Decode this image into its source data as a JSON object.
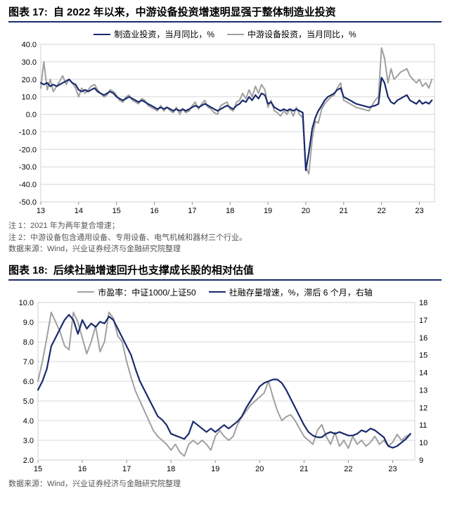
{
  "chart17": {
    "prefix": "图表 17:",
    "title": "自 2022 年以来，中游设备投资增速明显强于整体制造业投资",
    "type": "line",
    "legend": [
      {
        "label": "制造业投资，当月同比，%",
        "color": "#1a2a6c"
      },
      {
        "label": "中游设备投资，当月同比，%",
        "color": "#a0a0a0"
      }
    ],
    "x_labels": [
      "13",
      "14",
      "15",
      "16",
      "17",
      "18",
      "19",
      "20",
      "21",
      "22",
      "23"
    ],
    "x_values": [
      13,
      14,
      15,
      16,
      17,
      18,
      19,
      20,
      21,
      22,
      23
    ],
    "y_ticks": [
      -50,
      -40,
      -30,
      -20,
      -10,
      0,
      10,
      20,
      30,
      40
    ],
    "ylim": [
      -50,
      40
    ],
    "grid_color": "#d8d8d8",
    "background_color": "#ffffff",
    "line_width": 2.0,
    "title_fontsize": 15,
    "tick_fontsize": 11,
    "series": {
      "mfg": {
        "color": "#1a2a6c",
        "width": 2.2,
        "x": [
          13.0,
          13.08,
          13.17,
          13.25,
          13.33,
          13.42,
          13.5,
          13.58,
          13.67,
          13.75,
          13.83,
          13.92,
          14.0,
          14.08,
          14.17,
          14.25,
          14.33,
          14.42,
          14.5,
          14.58,
          14.67,
          14.75,
          14.83,
          14.92,
          15.0,
          15.08,
          15.17,
          15.25,
          15.33,
          15.42,
          15.5,
          15.58,
          15.67,
          15.75,
          15.83,
          15.92,
          16.0,
          16.08,
          16.17,
          16.25,
          16.33,
          16.42,
          16.5,
          16.58,
          16.67,
          16.75,
          16.83,
          16.92,
          17.0,
          17.08,
          17.17,
          17.25,
          17.33,
          17.42,
          17.5,
          17.58,
          17.67,
          17.75,
          17.83,
          17.92,
          18.0,
          18.08,
          18.17,
          18.25,
          18.33,
          18.42,
          18.5,
          18.58,
          18.67,
          18.75,
          18.83,
          18.92,
          19.0,
          19.08,
          19.17,
          19.25,
          19.33,
          19.42,
          19.5,
          19.58,
          19.67,
          19.75,
          19.83,
          19.92,
          20.0,
          20.08,
          20.17,
          20.25,
          20.33,
          20.42,
          20.5,
          20.58,
          20.67,
          20.75,
          20.83,
          20.92,
          21.0,
          21.17,
          21.33,
          21.5,
          21.67,
          21.83,
          21.92,
          22.0,
          22.08,
          22.17,
          22.25,
          22.33,
          22.42,
          22.5,
          22.58,
          22.67,
          22.75,
          22.83,
          22.92,
          23.0,
          23.08,
          23.17,
          23.25,
          23.33
        ],
        "y": [
          18,
          17,
          18,
          16,
          17,
          16,
          17,
          18,
          19,
          20,
          18,
          17,
          14,
          13,
          14,
          13,
          14,
          15,
          13,
          12,
          11,
          12,
          13,
          12,
          10,
          9,
          8,
          9,
          10,
          9,
          8,
          7,
          8,
          7,
          6,
          5,
          4,
          3,
          4,
          3,
          4,
          3,
          2,
          3,
          2,
          3,
          2,
          3,
          4,
          5,
          4,
          5,
          6,
          5,
          4,
          3,
          2,
          3,
          4,
          5,
          4,
          3,
          5,
          6,
          8,
          7,
          10,
          8,
          11,
          9,
          12,
          11,
          6,
          7,
          4,
          3,
          2,
          3,
          2,
          3,
          2,
          3,
          2,
          1,
          -32,
          -22,
          -8,
          -2,
          2,
          5,
          8,
          10,
          11,
          12,
          14,
          15,
          10,
          8,
          6,
          5,
          4,
          5,
          6,
          21,
          18,
          10,
          7,
          6,
          8,
          9,
          10,
          11,
          8,
          7,
          6,
          8,
          6,
          7,
          6,
          8
        ]
      },
      "midstream": {
        "color": "#a0a0a0",
        "width": 2.0,
        "x": [
          13.0,
          13.08,
          13.17,
          13.25,
          13.33,
          13.42,
          13.5,
          13.58,
          13.67,
          13.75,
          13.83,
          13.92,
          14.0,
          14.08,
          14.17,
          14.25,
          14.33,
          14.42,
          14.5,
          14.58,
          14.67,
          14.75,
          14.83,
          14.92,
          15.0,
          15.08,
          15.17,
          15.25,
          15.33,
          15.42,
          15.5,
          15.58,
          15.67,
          15.75,
          15.83,
          15.92,
          16.0,
          16.08,
          16.17,
          16.25,
          16.33,
          16.42,
          16.5,
          16.58,
          16.67,
          16.75,
          16.83,
          16.92,
          17.0,
          17.08,
          17.17,
          17.25,
          17.33,
          17.42,
          17.5,
          17.58,
          17.67,
          17.75,
          17.83,
          17.92,
          18.0,
          18.08,
          18.17,
          18.25,
          18.33,
          18.42,
          18.5,
          18.58,
          18.67,
          18.75,
          18.83,
          18.92,
          19.0,
          19.08,
          19.17,
          19.25,
          19.33,
          19.42,
          19.5,
          19.58,
          19.67,
          19.75,
          19.83,
          19.92,
          20.0,
          20.08,
          20.17,
          20.25,
          20.33,
          20.42,
          20.5,
          20.58,
          20.67,
          20.75,
          20.83,
          20.92,
          21.0,
          21.17,
          21.33,
          21.5,
          21.67,
          21.83,
          21.92,
          22.0,
          22.08,
          22.17,
          22.25,
          22.33,
          22.42,
          22.5,
          22.58,
          22.67,
          22.75,
          22.83,
          22.92,
          23.0,
          23.08,
          23.17,
          23.25,
          23.33
        ],
        "y": [
          15,
          30,
          14,
          20,
          13,
          16,
          19,
          22,
          17,
          20,
          18,
          15,
          10,
          15,
          12,
          14,
          16,
          17,
          14,
          12,
          10,
          11,
          14,
          13,
          11,
          8,
          7,
          10,
          11,
          8,
          7,
          6,
          9,
          8,
          5,
          4,
          3,
          2,
          5,
          2,
          4,
          2,
          1,
          4,
          0,
          3,
          1,
          2,
          5,
          7,
          3,
          6,
          8,
          4,
          3,
          1,
          0,
          5,
          6,
          7,
          3,
          2,
          7,
          8,
          12,
          9,
          14,
          10,
          16,
          12,
          17,
          14,
          4,
          8,
          2,
          1,
          -1,
          2,
          0,
          3,
          -1,
          4,
          0,
          -2,
          -30,
          -34,
          -14,
          -4,
          -5,
          3,
          6,
          8,
          10,
          11,
          15,
          18,
          8,
          6,
          4,
          3,
          2,
          8,
          10,
          38,
          32,
          18,
          26,
          20,
          22,
          24,
          25,
          26,
          22,
          20,
          18,
          20,
          16,
          18,
          15,
          20
        ]
      }
    },
    "notes": [
      "注 1：2021 年为两年复合增速；",
      "注 2：中游设备包含通用设备、专用设备、电气机械和器材三个行业。",
      "数据来源：Wind，兴业证券经济与金融研究院整理"
    ]
  },
  "chart18": {
    "prefix": "图表 18:",
    "title": "后续社融增速回升也支撑成长股的相对估值",
    "type": "line",
    "legend": [
      {
        "label": "市盈率：中证1000/上证50",
        "color": "#a0a0a0"
      },
      {
        "label": "社融存量增速，%，滞后 6 个月，右轴",
        "color": "#1a2a6c"
      }
    ],
    "x_labels": [
      "15",
      "16",
      "17",
      "18",
      "19",
      "20",
      "21",
      "22",
      "23"
    ],
    "x_values": [
      15,
      16,
      17,
      18,
      19,
      20,
      21,
      22,
      23
    ],
    "y_left_ticks": [
      2,
      3,
      4,
      5,
      6,
      7,
      8,
      9,
      10
    ],
    "y_left_lim": [
      2,
      10
    ],
    "y_right_ticks": [
      9,
      10,
      11,
      12,
      13,
      14,
      15,
      16,
      17,
      18
    ],
    "y_right_lim": [
      9,
      18
    ],
    "grid_color": "#d8d8d8",
    "background_color": "#ffffff",
    "line_width": 2.0,
    "title_fontsize": 15,
    "tick_fontsize": 11,
    "series": {
      "pe_ratio": {
        "axis": "left",
        "color": "#a0a0a0",
        "width": 2.0,
        "x": [
          15.0,
          15.1,
          15.2,
          15.3,
          15.4,
          15.5,
          15.6,
          15.7,
          15.8,
          15.9,
          16.0,
          16.1,
          16.2,
          16.3,
          16.4,
          16.5,
          16.6,
          16.7,
          16.8,
          16.9,
          17.0,
          17.1,
          17.2,
          17.3,
          17.4,
          17.5,
          17.6,
          17.7,
          17.8,
          17.9,
          18.0,
          18.1,
          18.2,
          18.3,
          18.4,
          18.5,
          18.6,
          18.7,
          18.8,
          18.9,
          19.0,
          19.1,
          19.2,
          19.3,
          19.4,
          19.5,
          19.6,
          19.7,
          19.8,
          19.9,
          20.0,
          20.1,
          20.2,
          20.3,
          20.4,
          20.5,
          20.6,
          20.7,
          20.8,
          20.9,
          21.0,
          21.1,
          21.2,
          21.3,
          21.4,
          21.5,
          21.6,
          21.7,
          21.8,
          21.9,
          22.0,
          22.1,
          22.2,
          22.3,
          22.4,
          22.5,
          22.6,
          22.7,
          22.8,
          22.9,
          23.0,
          23.1,
          23.2,
          23.3,
          23.4
        ],
        "y": [
          6.0,
          7.0,
          8.2,
          9.5,
          9.0,
          8.5,
          7.8,
          7.6,
          9.5,
          9.0,
          8.2,
          7.4,
          8.0,
          8.8,
          7.5,
          8.0,
          9.5,
          9.2,
          8.3,
          8.0,
          7.0,
          6.2,
          5.5,
          5.0,
          4.5,
          4.0,
          3.5,
          3.2,
          3.0,
          2.8,
          2.5,
          2.8,
          2.4,
          2.2,
          2.8,
          3.0,
          2.8,
          3.0,
          2.8,
          2.5,
          3.2,
          3.5,
          3.2,
          3.0,
          3.2,
          3.8,
          4.2,
          4.5,
          4.8,
          5.0,
          5.2,
          5.4,
          6.0,
          5.2,
          4.5,
          4.0,
          4.2,
          4.3,
          4.0,
          3.6,
          3.2,
          3.0,
          2.8,
          3.5,
          3.8,
          3.2,
          2.8,
          3.4,
          2.7,
          3.0,
          2.6,
          3.2,
          2.8,
          3.0,
          2.7,
          2.9,
          3.2,
          2.8,
          3.0,
          2.7,
          2.9,
          3.3,
          3.0,
          3.2,
          3.3
        ]
      },
      "sf_growth": {
        "axis": "right",
        "color": "#1a2a6c",
        "width": 2.2,
        "x": [
          15.0,
          15.1,
          15.2,
          15.3,
          15.4,
          15.5,
          15.6,
          15.7,
          15.8,
          15.9,
          16.0,
          16.1,
          16.2,
          16.3,
          16.4,
          16.5,
          16.6,
          16.7,
          16.8,
          16.9,
          17.0,
          17.1,
          17.2,
          17.3,
          17.4,
          17.5,
          17.6,
          17.7,
          17.8,
          17.9,
          18.0,
          18.1,
          18.2,
          18.3,
          18.4,
          18.5,
          18.6,
          18.7,
          18.8,
          18.9,
          19.0,
          19.1,
          19.2,
          19.3,
          19.4,
          19.5,
          19.6,
          19.7,
          19.8,
          19.9,
          20.0,
          20.1,
          20.2,
          20.3,
          20.4,
          20.5,
          20.6,
          20.7,
          20.8,
          20.9,
          21.0,
          21.1,
          21.2,
          21.3,
          21.4,
          21.5,
          21.6,
          21.7,
          21.8,
          21.9,
          22.0,
          22.1,
          22.2,
          22.3,
          22.4,
          22.5,
          22.6,
          22.7,
          22.8,
          22.9,
          23.0,
          23.1,
          23.2,
          23.3,
          23.4
        ],
        "y": [
          13.0,
          13.5,
          14.2,
          15.5,
          16.0,
          16.5,
          17.0,
          17.3,
          17.0,
          16.2,
          17.0,
          16.5,
          16.8,
          16.6,
          16.9,
          16.8,
          17.2,
          17.0,
          16.5,
          16.0,
          15.5,
          15.0,
          14.2,
          13.5,
          13.0,
          12.5,
          12.0,
          11.5,
          11.3,
          11.0,
          10.5,
          10.4,
          10.3,
          10.2,
          10.5,
          11.2,
          11.0,
          10.8,
          10.6,
          10.8,
          10.6,
          10.8,
          11.0,
          10.8,
          11.0,
          11.2,
          11.5,
          12.0,
          12.4,
          12.8,
          13.2,
          13.4,
          13.5,
          13.6,
          13.6,
          13.4,
          13.0,
          12.5,
          12.0,
          11.5,
          11.0,
          10.6,
          10.4,
          10.3,
          10.3,
          10.5,
          10.6,
          10.5,
          10.6,
          10.5,
          10.4,
          10.4,
          10.5,
          10.7,
          10.6,
          10.8,
          10.7,
          10.5,
          10.3,
          9.8,
          9.7,
          9.8,
          10.0,
          10.2,
          10.5
        ]
      }
    },
    "notes": [
      "数据来源：Wind，兴业证券经济与金融研究院整理"
    ]
  }
}
